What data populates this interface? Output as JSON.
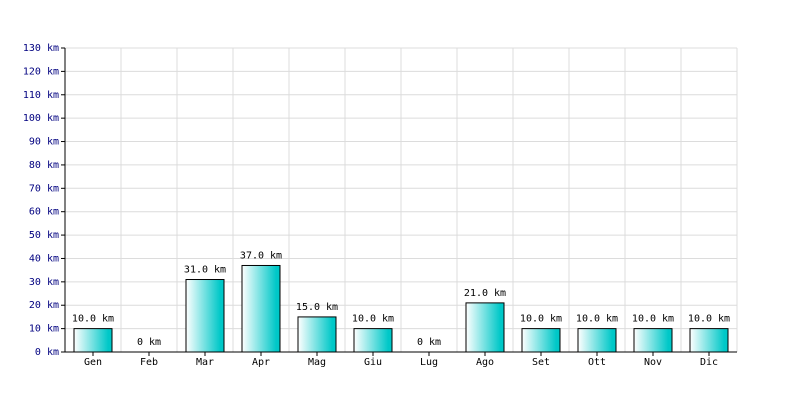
{
  "chart_data": {
    "type": "bar",
    "categories": [
      "Gen",
      "Feb",
      "Mar",
      "Apr",
      "Mag",
      "Giu",
      "Lug",
      "Ago",
      "Set",
      "Ott",
      "Nov",
      "Dic"
    ],
    "values": [
      10,
      0,
      31,
      37,
      15,
      10,
      0,
      21,
      10,
      10,
      10,
      10
    ],
    "value_labels": [
      "10.0 km",
      "0 km",
      "31.0 km",
      "37.0 km",
      "15.0 km",
      "10.0 km",
      "0 km",
      "21.0 km",
      "10.0 km",
      "10.0 km",
      "10.0 km",
      "10.0 km"
    ],
    "color": "#00c8c8",
    "ylim": [
      0,
      130
    ],
    "yticks": [
      {
        "value": 0,
        "label": "0 km"
      },
      {
        "value": 10,
        "label": "10 km"
      },
      {
        "value": 20,
        "label": "20 km"
      },
      {
        "value": 30,
        "label": "30 km"
      },
      {
        "value": 40,
        "label": "40 km"
      },
      {
        "value": 50,
        "label": "50 km"
      },
      {
        "value": 60,
        "label": "60 km"
      },
      {
        "value": 70,
        "label": "70 km"
      },
      {
        "value": 80,
        "label": "80 km"
      },
      {
        "value": 90,
        "label": "90 km"
      },
      {
        "value": 100,
        "label": "100 km"
      },
      {
        "value": 110,
        "label": "110 km"
      },
      {
        "value": 120,
        "label": "120 km"
      },
      {
        "value": 130,
        "label": "130 km"
      }
    ],
    "grid": true
  }
}
